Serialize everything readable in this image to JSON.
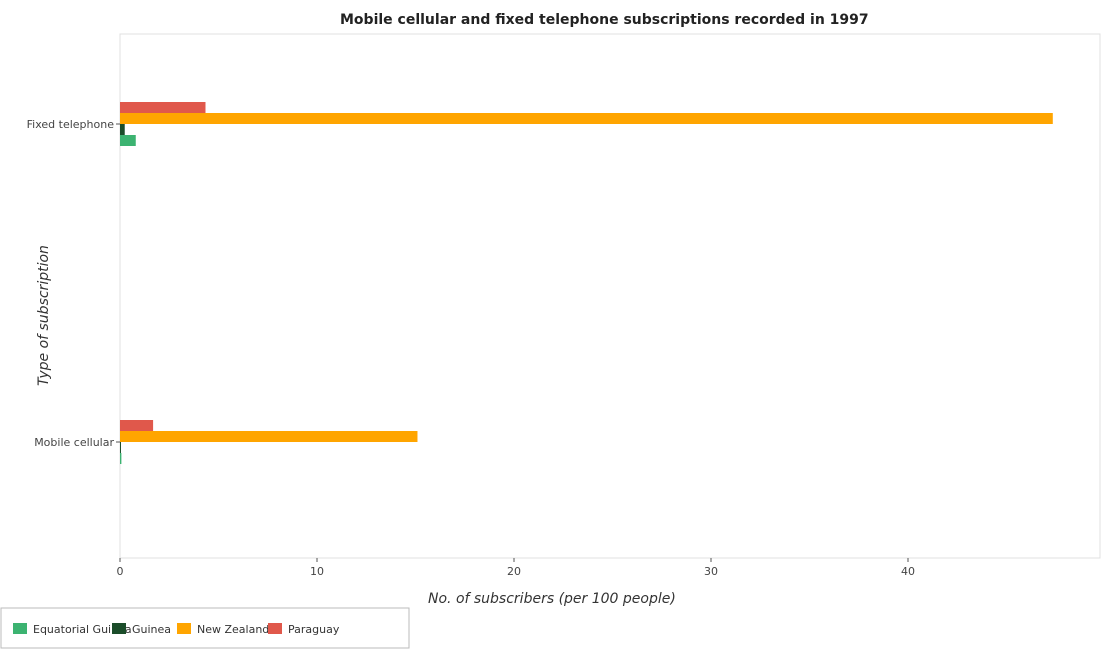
{
  "chart_data": {
    "type": "bar",
    "orientation": "horizontal",
    "title": "Mobile cellular and fixed telephone subscriptions recorded in 1997",
    "xlabel": "No. of subscribers (per 100 people)",
    "ylabel": "Type of subscription",
    "categories": [
      "Mobile cellular",
      "Fixed telephone"
    ],
    "xlim": [
      0,
      50
    ],
    "xticks": [
      0,
      10,
      20,
      30,
      40
    ],
    "xtick_labels": [
      "0",
      "10",
      "20",
      "30",
      "40"
    ],
    "grid": false,
    "legend_position": "bottom-left",
    "series": [
      {
        "name": "Equatorial Guinea",
        "color": "#3cb371",
        "values": [
          0.07,
          0.8
        ]
      },
      {
        "name": "Guinea",
        "color": "#1b4d2a",
        "values": [
          0.05,
          0.24
        ]
      },
      {
        "name": "New Zealand",
        "color": "#ffa500",
        "values": [
          15.1,
          47.35
        ]
      },
      {
        "name": "Paraguay",
        "color": "#e0584b",
        "values": [
          1.68,
          4.34
        ]
      }
    ]
  }
}
